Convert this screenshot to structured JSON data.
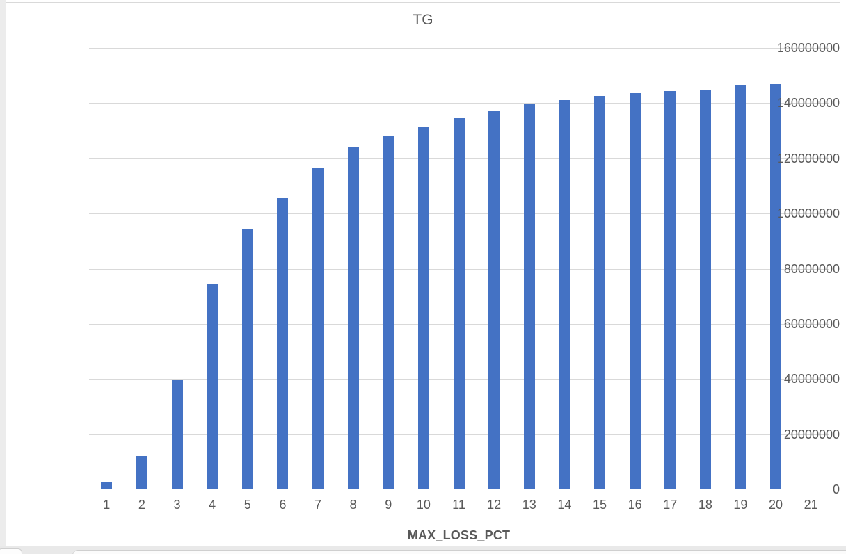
{
  "chart_data": {
    "type": "bar",
    "title": "TG",
    "xlabel": "MAX_LOSS_PCT",
    "ylabel": "",
    "categories": [
      "1",
      "2",
      "3",
      "4",
      "5",
      "6",
      "7",
      "8",
      "9",
      "10",
      "11",
      "12",
      "13",
      "14",
      "15",
      "16",
      "17",
      "18",
      "19",
      "20",
      "21"
    ],
    "values": [
      2500000,
      12000000,
      39500000,
      74500000,
      94500000,
      105500000,
      116500000,
      124000000,
      128000000,
      131500000,
      134500000,
      137000000,
      139500000,
      141000000,
      142500000,
      143500000,
      144500000,
      145000000,
      146500000,
      147000000,
      0
    ],
    "ylim": [
      0,
      160000000
    ],
    "yticks": [
      0,
      20000000,
      40000000,
      60000000,
      80000000,
      100000000,
      120000000,
      140000000,
      160000000
    ],
    "grid": true,
    "legend": false,
    "bar_color": "#4472C4"
  },
  "colors": {
    "bar": "#4472C4",
    "gridline": "#D9D9D9",
    "axis_line": "#C6C6C6",
    "tick_text": "#595959",
    "title_text": "#595959",
    "card_border": "#D9D9D9",
    "page_margin": "#ECECEC",
    "bottom_strip": "#E9E9E9"
  }
}
